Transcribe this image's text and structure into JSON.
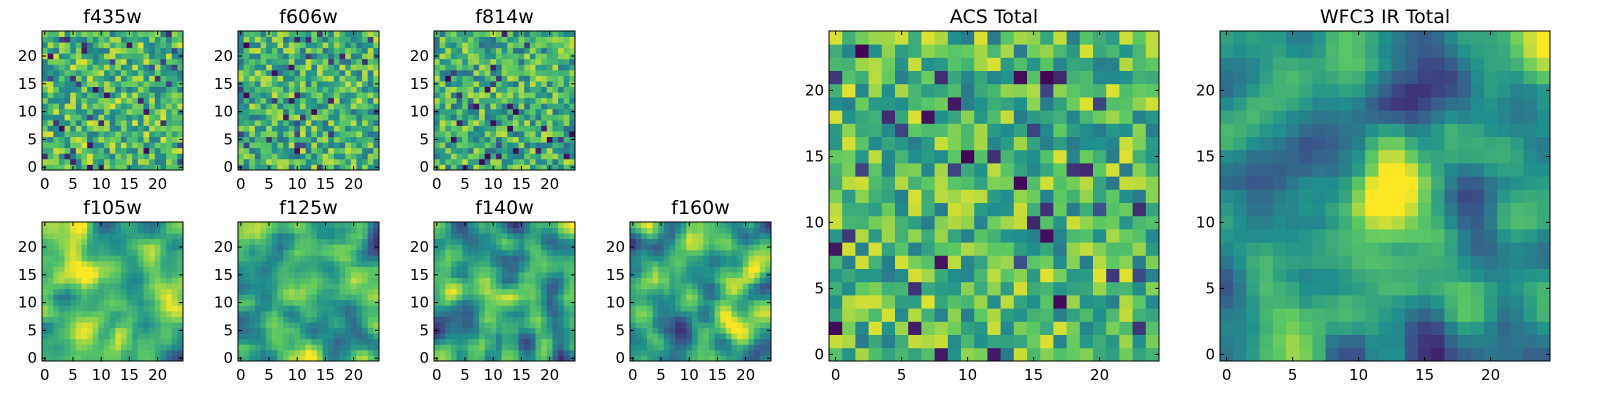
{
  "figure": {
    "colormap": "viridis",
    "colormap_stops": [
      "#440154",
      "#3b528b",
      "#21908d",
      "#5dc963",
      "#fde725"
    ],
    "background": "#ffffff"
  },
  "chart_data": [
    {
      "type": "heatmap",
      "title": "f435w",
      "grid_size": 25,
      "xlim": [
        -0.5,
        24.5
      ],
      "ylim": [
        -0.5,
        24.5
      ],
      "xticks": [
        0,
        5,
        10,
        15,
        20
      ],
      "yticks": [
        0,
        5,
        10,
        15,
        20
      ],
      "texture": "white-noise",
      "seed": 11,
      "mean_level": 0.68
    },
    {
      "type": "heatmap",
      "title": "f606w",
      "grid_size": 25,
      "xlim": [
        -0.5,
        24.5
      ],
      "ylim": [
        -0.5,
        24.5
      ],
      "xticks": [
        0,
        5,
        10,
        15,
        20
      ],
      "yticks": [
        0,
        5,
        10,
        15,
        20
      ],
      "texture": "white-noise",
      "seed": 23,
      "mean_level": 0.65
    },
    {
      "type": "heatmap",
      "title": "f814w",
      "grid_size": 25,
      "xlim": [
        -0.5,
        24.5
      ],
      "ylim": [
        -0.5,
        24.5
      ],
      "xticks": [
        0,
        5,
        10,
        15,
        20
      ],
      "yticks": [
        0,
        5,
        10,
        15,
        20
      ],
      "texture": "white-noise",
      "seed": 37,
      "mean_level": 0.64
    },
    {
      "type": "heatmap",
      "title": "f105w",
      "grid_size": 25,
      "xlim": [
        -0.5,
        24.5
      ],
      "ylim": [
        -0.5,
        24.5
      ],
      "xticks": [
        0,
        5,
        10,
        15,
        20
      ],
      "yticks": [
        0,
        5,
        10,
        15,
        20
      ],
      "texture": "smooth",
      "seed": 41,
      "mean_level": 0.66
    },
    {
      "type": "heatmap",
      "title": "f125w",
      "grid_size": 25,
      "xlim": [
        -0.5,
        24.5
      ],
      "ylim": [
        -0.5,
        24.5
      ],
      "xticks": [
        0,
        5,
        10,
        15,
        20
      ],
      "yticks": [
        0,
        5,
        10,
        15,
        20
      ],
      "texture": "smooth",
      "seed": 53,
      "mean_level": 0.6
    },
    {
      "type": "heatmap",
      "title": "f140w",
      "grid_size": 25,
      "xlim": [
        -0.5,
        24.5
      ],
      "ylim": [
        -0.5,
        24.5
      ],
      "xticks": [
        0,
        5,
        10,
        15,
        20
      ],
      "yticks": [
        0,
        5,
        10,
        15,
        20
      ],
      "texture": "smooth",
      "seed": 67,
      "mean_level": 0.58
    },
    {
      "type": "heatmap",
      "title": "f160w",
      "grid_size": 25,
      "xlim": [
        -0.5,
        24.5
      ],
      "ylim": [
        -0.5,
        24.5
      ],
      "xticks": [
        0,
        5,
        10,
        15,
        20
      ],
      "yticks": [
        0,
        5,
        10,
        15,
        20
      ],
      "texture": "smooth",
      "seed": 79,
      "mean_level": 0.6
    },
    {
      "type": "heatmap",
      "title": "ACS Total",
      "grid_size": 25,
      "xlim": [
        -0.5,
        24.5
      ],
      "ylim": [
        -0.5,
        24.5
      ],
      "xticks": [
        0,
        5,
        10,
        15,
        20
      ],
      "yticks": [
        0,
        5,
        10,
        15,
        20
      ],
      "texture": "white-noise",
      "seed": 97,
      "mean_level": 0.68
    },
    {
      "type": "heatmap",
      "title": "WFC3 IR Total",
      "grid_size": 25,
      "xlim": [
        -0.5,
        24.5
      ],
      "ylim": [
        -0.5,
        24.5
      ],
      "xticks": [
        0,
        5,
        10,
        15,
        20
      ],
      "yticks": [
        0,
        5,
        10,
        15,
        20
      ],
      "texture": "smooth-with-central-peak",
      "seed": 101,
      "mean_level": 0.55
    }
  ]
}
